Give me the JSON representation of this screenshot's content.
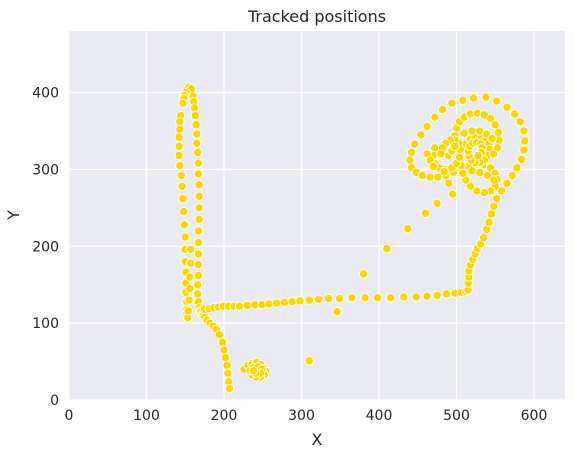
{
  "chart_data": {
    "type": "scatter",
    "title": "Tracked positions",
    "xlabel": "X",
    "ylabel": "Y",
    "xlim": [
      0,
      640
    ],
    "ylim": [
      0,
      480
    ],
    "xticks": [
      0,
      100,
      200,
      300,
      400,
      500,
      600
    ],
    "yticks": [
      0,
      100,
      200,
      300,
      400
    ],
    "grid": true,
    "background_color": "#eaeaf2",
    "point_color": "#ffd700",
    "series": [
      {
        "points": [
          [
            152,
            404
          ],
          [
            155,
            407
          ],
          [
            158,
            405
          ],
          [
            151,
            400
          ],
          [
            149,
            396
          ],
          [
            148,
            392
          ],
          [
            147,
            386
          ],
          [
            144,
            370
          ],
          [
            143,
            362
          ],
          [
            143,
            352
          ],
          [
            142,
            342
          ],
          [
            142,
            330
          ],
          [
            142,
            318
          ],
          [
            143,
            305
          ],
          [
            145,
            292
          ],
          [
            146,
            278
          ],
          [
            147,
            262
          ],
          [
            148,
            245
          ],
          [
            149,
            228
          ],
          [
            150,
            212
          ],
          [
            150,
            196
          ],
          [
            150,
            180
          ],
          [
            151,
            166
          ],
          [
            151,
            152
          ],
          [
            151,
            140
          ],
          [
            152,
            128
          ],
          [
            152,
            118
          ],
          [
            152,
            112
          ],
          [
            153,
            107
          ],
          [
            154,
            116
          ],
          [
            155,
            130
          ],
          [
            156,
            145
          ],
          [
            156,
            160
          ],
          [
            157,
            178
          ],
          [
            157,
            196
          ],
          [
            160,
            395
          ],
          [
            161,
            388
          ],
          [
            162,
            380
          ],
          [
            163,
            370
          ],
          [
            164,
            358
          ],
          [
            165,
            346
          ],
          [
            165,
            334
          ],
          [
            166,
            322
          ],
          [
            167,
            308
          ],
          [
            167,
            294
          ],
          [
            168,
            280
          ],
          [
            168,
            265
          ],
          [
            168,
            250
          ],
          [
            168,
            235
          ],
          [
            167,
            220
          ],
          [
            167,
            205
          ],
          [
            167,
            190
          ],
          [
            167,
            176
          ],
          [
            167,
            162
          ],
          [
            166,
            150
          ],
          [
            166,
            138
          ],
          [
            167,
            128
          ],
          [
            168,
            120
          ],
          [
            169,
            116
          ],
          [
            170,
            114
          ],
          [
            172,
            112
          ],
          [
            173,
            110
          ],
          [
            175,
            108
          ],
          [
            178,
            104
          ],
          [
            182,
            100
          ],
          [
            186,
            96
          ],
          [
            190,
            92
          ],
          [
            194,
            85
          ],
          [
            198,
            75
          ],
          [
            200,
            65
          ],
          [
            202,
            55
          ],
          [
            204,
            45
          ],
          [
            205,
            35
          ],
          [
            206,
            24
          ],
          [
            207,
            15
          ],
          [
            175,
            118
          ],
          [
            181,
            119
          ],
          [
            187,
            120
          ],
          [
            193,
            121
          ],
          [
            199,
            122
          ],
          [
            206,
            122
          ],
          [
            213,
            122
          ],
          [
            220,
            122
          ],
          [
            230,
            123
          ],
          [
            240,
            124
          ],
          [
            249,
            124
          ],
          [
            258,
            125
          ],
          [
            268,
            126
          ],
          [
            278,
            127
          ],
          [
            288,
            128
          ],
          [
            298,
            129
          ],
          [
            310,
            130
          ],
          [
            322,
            131
          ],
          [
            335,
            132
          ],
          [
            349,
            132
          ],
          [
            365,
            133
          ],
          [
            382,
            133
          ],
          [
            398,
            133
          ],
          [
            415,
            133
          ],
          [
            432,
            134
          ],
          [
            448,
            134
          ],
          [
            462,
            135
          ],
          [
            475,
            136
          ],
          [
            487,
            138
          ],
          [
            498,
            139
          ],
          [
            506,
            140
          ],
          [
            512,
            141
          ],
          [
            515,
            143
          ],
          [
            515,
            152
          ],
          [
            516,
            160
          ],
          [
            516,
            168
          ],
          [
            518,
            176
          ],
          [
            521,
            183
          ],
          [
            524,
            190
          ],
          [
            527,
            197
          ],
          [
            531,
            203
          ],
          [
            535,
            211
          ],
          [
            539,
            222
          ],
          [
            542,
            231
          ],
          [
            545,
            242
          ],
          [
            548,
            252
          ],
          [
            552,
            262
          ],
          [
            558,
            272
          ],
          [
            565,
            282
          ],
          [
            572,
            292
          ],
          [
            578,
            302
          ],
          [
            584,
            313
          ],
          [
            587,
            325
          ],
          [
            588,
            337
          ],
          [
            587,
            350
          ],
          [
            582,
            362
          ],
          [
            575,
            372
          ],
          [
            565,
            381
          ],
          [
            552,
            389
          ],
          [
            538,
            394
          ],
          [
            522,
            393
          ],
          [
            508,
            390
          ],
          [
            494,
            386
          ],
          [
            482,
            378
          ],
          [
            472,
            368
          ],
          [
            462,
            356
          ],
          [
            454,
            345
          ],
          [
            446,
            333
          ],
          [
            442,
            322
          ],
          [
            440,
            312
          ],
          [
            442,
            302
          ],
          [
            448,
            296
          ],
          [
            456,
            292
          ],
          [
            466,
            290
          ],
          [
            476,
            290
          ],
          [
            486,
            292
          ],
          [
            496,
            296
          ],
          [
            506,
            300
          ],
          [
            516,
            304
          ],
          [
            526,
            307
          ],
          [
            536,
            306
          ],
          [
            544,
            302
          ],
          [
            550,
            295
          ],
          [
            552,
            287
          ],
          [
            550,
            278
          ],
          [
            544,
            272
          ],
          [
            536,
            270
          ],
          [
            526,
            272
          ],
          [
            518,
            278
          ],
          [
            512,
            286
          ],
          [
            508,
            295
          ],
          [
            506,
            305
          ],
          [
            506,
            315
          ],
          [
            508,
            325
          ],
          [
            512,
            333
          ],
          [
            518,
            339
          ],
          [
            524,
            342
          ],
          [
            532,
            342
          ],
          [
            538,
            339
          ],
          [
            542,
            333
          ],
          [
            543,
            326
          ],
          [
            541,
            318
          ],
          [
            536,
            312
          ],
          [
            530,
            309
          ],
          [
            524,
            309
          ],
          [
            519,
            312
          ],
          [
            516,
            318
          ],
          [
            515,
            324
          ],
          [
            517,
            330
          ],
          [
            521,
            334
          ],
          [
            526,
            335
          ],
          [
            531,
            333
          ],
          [
            533,
            328
          ],
          [
            532,
            322
          ],
          [
            528,
            318
          ],
          [
            498,
            344
          ],
          [
            500,
            354
          ],
          [
            504,
            362
          ],
          [
            510,
            368
          ],
          [
            518,
            372
          ],
          [
            527,
            373
          ],
          [
            536,
            371
          ],
          [
            544,
            366
          ],
          [
            550,
            358
          ],
          [
            554,
            348
          ],
          [
            555,
            338
          ],
          [
            553,
            328
          ],
          [
            548,
            320
          ],
          [
            472,
            328
          ],
          [
            470,
            318
          ],
          [
            472,
            308
          ],
          [
            478,
            302
          ],
          [
            486,
            300
          ],
          [
            494,
            302
          ],
          [
            500,
            308
          ],
          [
            504,
            316
          ],
          [
            505,
            326
          ],
          [
            503,
            334
          ],
          [
            498,
            338
          ],
          [
            492,
            338
          ],
          [
            486,
            334
          ],
          [
            482,
            328
          ],
          [
            480,
            320
          ],
          [
            510,
            347
          ],
          [
            520,
            350
          ],
          [
            530,
            350
          ],
          [
            539,
            346
          ],
          [
            546,
            340
          ],
          [
            490,
            318
          ],
          [
            494,
            324
          ],
          [
            498,
            330
          ],
          [
            520,
            298
          ],
          [
            530,
            296
          ],
          [
            540,
            292
          ],
          [
            548,
            286
          ],
          [
            462,
            320
          ],
          [
            466,
            312
          ],
          [
            470,
            304
          ],
          [
            495,
            268
          ],
          [
            490,
            282
          ],
          [
            484,
            297
          ],
          [
            475,
            256
          ],
          [
            460,
            243
          ],
          [
            437,
            223
          ],
          [
            410,
            197
          ],
          [
            380,
            164
          ],
          [
            346,
            115
          ],
          [
            310,
            51
          ],
          [
            226,
            40
          ],
          [
            231,
            45
          ],
          [
            236,
            47
          ],
          [
            242,
            49
          ],
          [
            248,
            46
          ],
          [
            252,
            41
          ],
          [
            254,
            37
          ],
          [
            252,
            33
          ],
          [
            247,
            30
          ],
          [
            241,
            30
          ],
          [
            236,
            33
          ],
          [
            234,
            38
          ],
          [
            238,
            42
          ],
          [
            244,
            43
          ],
          [
            249,
            40
          ],
          [
            247,
            35
          ],
          [
            241,
            35
          ],
          [
            238,
            38
          ]
        ]
      }
    ]
  }
}
